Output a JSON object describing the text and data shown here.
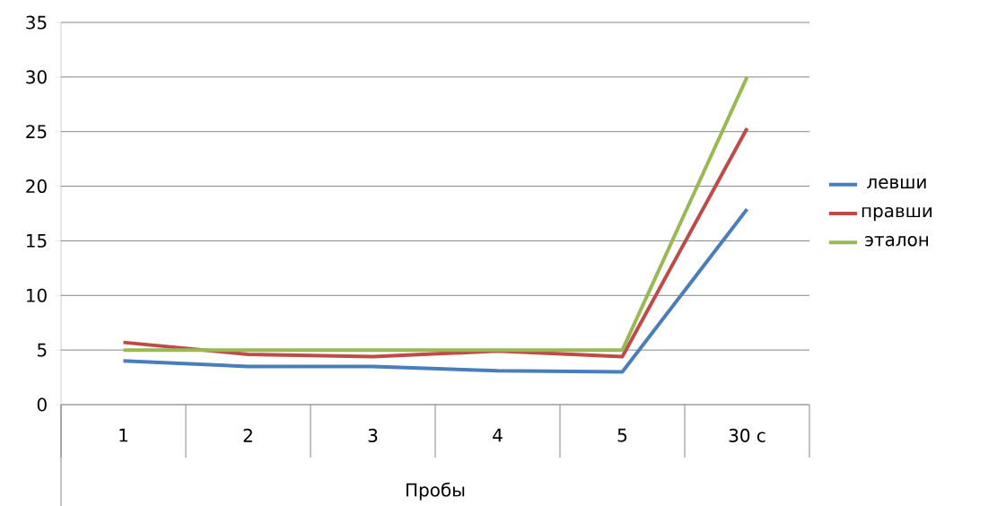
{
  "chart_data": {
    "type": "line",
    "xlabel": "Пробы",
    "categories": [
      "1",
      "2",
      "3",
      "4",
      "5",
      "30 с"
    ],
    "series": [
      {
        "name": "левши",
        "color": "#4a7ebb",
        "values": [
          4,
          3.5,
          3.5,
          3.1,
          3,
          17.9
        ]
      },
      {
        "name": "правши",
        "color": "#be4b48",
        "values": [
          5.7,
          4.6,
          4.4,
          4.9,
          4.4,
          25.3
        ]
      },
      {
        "name": "эталон",
        "color": "#98b954",
        "values": [
          5,
          5,
          5,
          5,
          5,
          30
        ]
      }
    ],
    "ylim": [
      0,
      35
    ],
    "yticks": [
      0,
      5,
      10,
      15,
      20,
      25,
      30,
      35
    ],
    "grid": "y",
    "legend": "right",
    "marker": "none",
    "line_style": "solid"
  }
}
